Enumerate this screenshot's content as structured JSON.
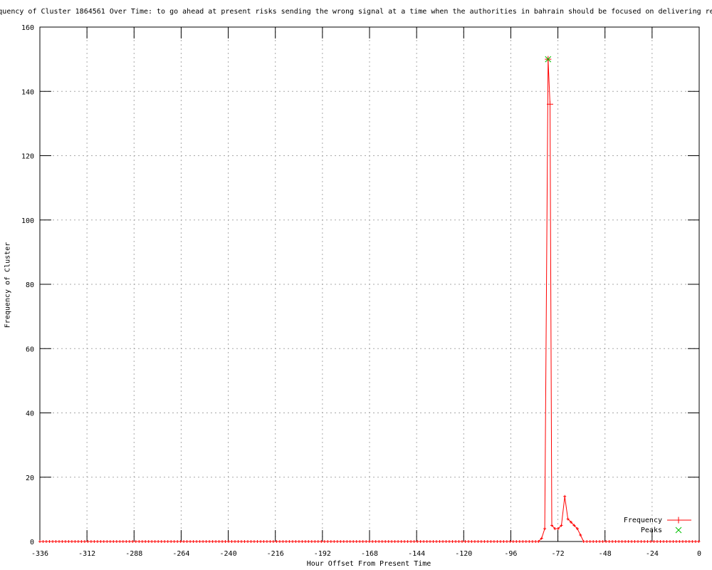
{
  "chart_data": {
    "type": "line",
    "title": "quency of Cluster 1864561 Over Time: to go ahead at present risks sending the wrong signal at a time when the authorities in bahrain should be focused on delivering re",
    "xlabel": "Hour Offset From Present Time",
    "ylabel": "Frequency of Cluster",
    "xlim": [
      -336,
      0
    ],
    "ylim": [
      0,
      160
    ],
    "x_ticks": [
      -336,
      -312,
      -288,
      -264,
      -240,
      -216,
      -192,
      -168,
      -144,
      -120,
      -96,
      -72,
      -48,
      -24,
      0
    ],
    "y_ticks": [
      0,
      20,
      40,
      60,
      80,
      100,
      120,
      140,
      160
    ],
    "grid": true,
    "legend_position": "bottom-right-inside",
    "series": [
      {
        "name": "Frequency",
        "color": "#ff0000",
        "marker": "plus",
        "baseline": {
          "start": -336,
          "end": 0,
          "step": 1.63,
          "value": 0,
          "gap_start": -81.9,
          "gap_end": -58.9
        },
        "points": [
          [
            -81.9,
            0
          ],
          [
            -80.3,
            1
          ],
          [
            -78.7,
            4
          ],
          [
            -77,
            150
          ],
          [
            -76,
            136
          ],
          [
            -75.1,
            5
          ],
          [
            -73.5,
            4
          ],
          [
            -71.9,
            4
          ],
          [
            -70.2,
            5
          ],
          [
            -68.5,
            14
          ],
          [
            -66.9,
            7
          ],
          [
            -65.3,
            6
          ],
          [
            -63.7,
            5
          ],
          [
            -62.1,
            4
          ],
          [
            -60.5,
            2
          ],
          [
            -58.9,
            0
          ]
        ]
      },
      {
        "name": "Peaks",
        "color": "#00c000",
        "marker": "cross",
        "points": [
          [
            -77,
            150
          ]
        ]
      }
    ],
    "colors": {
      "grid": "#a8a8a8",
      "axis": "#000000",
      "text": "#000000",
      "background": "#ffffff"
    }
  }
}
